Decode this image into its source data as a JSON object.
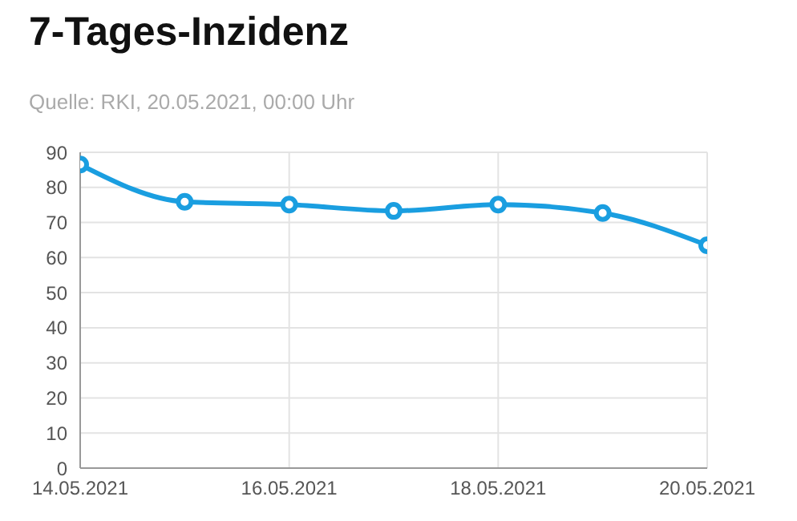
{
  "chart_data": {
    "type": "line",
    "title": "7-Tages-Inzidenz",
    "subtitle": "Quelle: RKI, 20.05.2021, 00:00 Uhr",
    "x": [
      "2021-05-14",
      "2021-05-15",
      "2021-05-16",
      "2021-05-17",
      "2021-05-18",
      "2021-05-19",
      "2021-05-20"
    ],
    "series": [
      {
        "color": "#1a9ee0",
        "values": [
          86.5,
          75.9,
          75.1,
          73.3,
          75.1,
          72.7,
          63.5
        ]
      }
    ],
    "xlim": [
      "2021-05-14",
      "2021-05-20"
    ],
    "xticks": [
      {
        "value": "2021-05-14",
        "label": "14.05.2021"
      },
      {
        "value": "2021-05-16",
        "label": "16.05.2021"
      },
      {
        "value": "2021-05-18",
        "label": "18.05.2021"
      },
      {
        "value": "2021-05-20",
        "label": "20.05.2021"
      }
    ],
    "ylim": [
      0,
      90
    ],
    "yticks": [
      0,
      10,
      20,
      30,
      40,
      50,
      60,
      70,
      80,
      90
    ],
    "grid": true,
    "marker": "circle",
    "line_style": "solid"
  }
}
